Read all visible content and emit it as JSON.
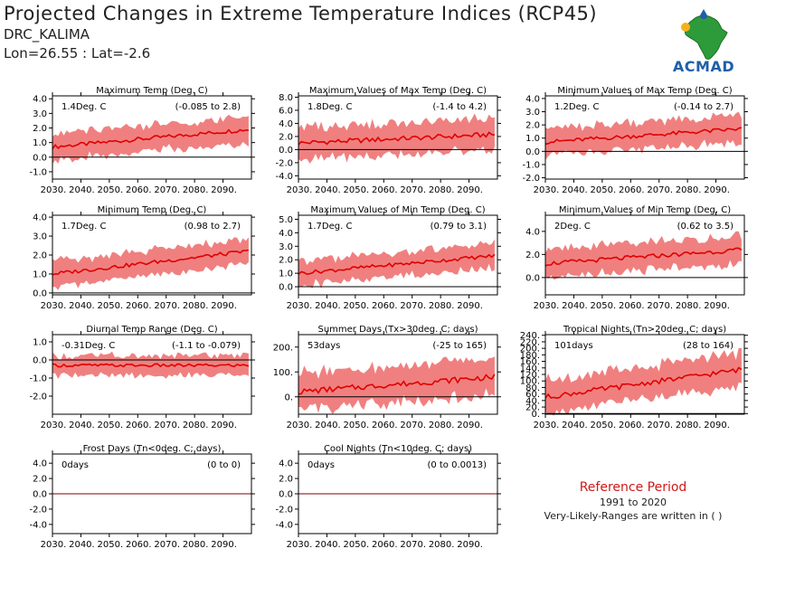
{
  "header": {
    "title": "Projected Changes in Extreme Temperature Indices (RCP45)",
    "location": "DRC_KALIMA",
    "coords": "Lon=26.55 : Lat=-2.6"
  },
  "logo": {
    "text": "ACMAD"
  },
  "reference": {
    "title": "Reference Period",
    "years": "1991 to 2020",
    "note": "Very-Likely-Ranges are written in ( )"
  },
  "colors": {
    "band": "#f08080",
    "line": "#e00000",
    "zero": "#000000"
  },
  "chart_data": [
    {
      "type": "area",
      "title": "Maximum Temp (Deg. C)",
      "value": "1.4Deg. C",
      "range": "(-0.085 to 2.8)",
      "x_ticks": [
        "2030.",
        "2040.",
        "2050.",
        "2060.",
        "2070.",
        "2080.",
        "2090."
      ],
      "x_range": [
        2030,
        2100
      ],
      "y_ticks": [
        "-1.0",
        "0.0",
        "1.0",
        "2.0",
        "3.0",
        "4.0"
      ],
      "ylim": [
        -1.5,
        4.2
      ],
      "mean_start": 0.7,
      "mean_end": 1.9,
      "band_low": -0.7,
      "band_high": 1.6
    },
    {
      "type": "area",
      "title": "Maximum Values of Max Temp (Deg. C)",
      "value": "1.8Deg. C",
      "range": "(-1.4 to 4.2)",
      "x_ticks": [
        "2030.",
        "2040.",
        "2050.",
        "2060.",
        "2070.",
        "2080.",
        "2090."
      ],
      "x_range": [
        2030,
        2100
      ],
      "y_ticks": [
        "-4.0",
        "-2.0",
        "0.0",
        "2.0",
        "4.0",
        "6.0",
        "8.0"
      ],
      "ylim": [
        -4.5,
        8.2
      ],
      "mean_start": 1.0,
      "mean_end": 2.3,
      "band_low": -3.0,
      "band_high": 3.2
    },
    {
      "type": "area",
      "title": "Minimum Values of Max Temp (Deg. C)",
      "value": "1.2Deg. C",
      "range": "(-0.14 to 2.7)",
      "x_ticks": [
        "2030.",
        "2040.",
        "2050.",
        "2060.",
        "2070.",
        "2080.",
        "2090."
      ],
      "x_range": [
        2030,
        2100
      ],
      "y_ticks": [
        "-2.0",
        "-1.0",
        "0.0",
        "1.0",
        "2.0",
        "3.0",
        "4.0"
      ],
      "ylim": [
        -2.1,
        4.2
      ],
      "mean_start": 0.7,
      "mean_end": 1.7,
      "band_low": -1.0,
      "band_high": 1.6
    },
    {
      "type": "area",
      "title": "Minimum Temp (Deg. C)",
      "value": "1.7Deg. C",
      "range": "(0.98 to 2.7)",
      "x_ticks": [
        "2030.",
        "2040.",
        "2050.",
        "2060.",
        "2070.",
        "2080.",
        "2090."
      ],
      "x_range": [
        2030,
        2100
      ],
      "y_ticks": [
        "0.0",
        "1.0",
        "2.0",
        "3.0",
        "4.0"
      ],
      "ylim": [
        -0.1,
        4.1
      ],
      "mean_start": 1.0,
      "mean_end": 2.2,
      "band_low": -0.6,
      "band_high": 1.1
    },
    {
      "type": "area",
      "title": "Maximum Values of Min Temp (Deg. C)",
      "value": "1.7Deg. C",
      "range": "(0.79 to 3.1)",
      "x_ticks": [
        "2030.",
        "2040.",
        "2050.",
        "2060.",
        "2070.",
        "2080.",
        "2090."
      ],
      "x_range": [
        2030,
        2100
      ],
      "y_ticks": [
        "0.0",
        "1.0",
        "2.0",
        "3.0",
        "4.0",
        "5.0"
      ],
      "ylim": [
        -0.6,
        5.3
      ],
      "mean_start": 1.0,
      "mean_end": 2.3,
      "band_low": -0.8,
      "band_high": 1.5
    },
    {
      "type": "area",
      "title": "Minimum Values of Min Temp (Deg. C)",
      "value": "2Deg. C",
      "range": "(0.62 to 3.5)",
      "x_ticks": [
        "2030.",
        "2040.",
        "2050.",
        "2060.",
        "2070.",
        "2080.",
        "2090."
      ],
      "x_range": [
        2030,
        2100
      ],
      "y_ticks": [
        "0.0",
        "2.0",
        "4.0"
      ],
      "ylim": [
        -1.5,
        5.4
      ],
      "mean_start": 1.2,
      "mean_end": 2.4,
      "band_low": -1.3,
      "band_high": 1.8
    },
    {
      "type": "area",
      "title": "Diurnal Temp Range (Deg. C)",
      "value": "-0.31Deg. C",
      "range": "(-1.1 to -0.079)",
      "x_ticks": [
        "2030.",
        "2040.",
        "2050.",
        "2060.",
        "2070.",
        "2080.",
        "2090."
      ],
      "x_range": [
        2030,
        2100
      ],
      "y_ticks": [
        "-2.0",
        "-1.0",
        "0.0",
        "1.0"
      ],
      "ylim": [
        -3.0,
        1.4
      ],
      "mean_start": -0.3,
      "mean_end": -0.3,
      "band_low": -0.9,
      "band_high": 0.5
    },
    {
      "type": "area",
      "title": "Summer Days (Tx>30deg. C; days)",
      "value": "53days",
      "range": "(-25 to 165)",
      "x_ticks": [
        "2030.",
        "2040.",
        "2050.",
        "2060.",
        "2070.",
        "2080.",
        "2090."
      ],
      "x_range": [
        2030,
        2100
      ],
      "y_ticks": [
        "0.",
        "100.",
        "200."
      ],
      "ylim": [
        -70,
        250
      ],
      "mean_start": 20,
      "mean_end": 80,
      "band_low": -50,
      "band_high": 140
    },
    {
      "type": "area",
      "title": "Tropical Nights (Tn>20deg. C; days)",
      "value": "101days",
      "range": "(28 to 164)",
      "x_ticks": [
        "2030.",
        "2040.",
        "2050.",
        "2060.",
        "2070.",
        "2080.",
        "2090."
      ],
      "x_range": [
        2030,
        2100
      ],
      "y_ticks": [
        "0.",
        "20.",
        "40.",
        "60.",
        "80.",
        "100.",
        "120.",
        "140.",
        "160.",
        "180.",
        "200.",
        "220.",
        "240."
      ],
      "ylim": [
        -2,
        242
      ],
      "mean_start": 50,
      "mean_end": 135,
      "band_low": -40,
      "band_high": 90
    },
    {
      "type": "area",
      "title": "Frost Days (Tn<0deg. C; days)",
      "value": "0days",
      "range": "(0 to 0)",
      "x_ticks": [
        "2030.",
        "2040.",
        "2050.",
        "2060.",
        "2070.",
        "2080.",
        "2090."
      ],
      "x_range": [
        2030,
        2100
      ],
      "y_ticks": [
        "-4.0",
        "-2.0",
        "0.0",
        "2.0",
        "4.0"
      ],
      "ylim": [
        -5.2,
        5.2
      ],
      "mean_start": 0,
      "mean_end": 0,
      "band_low": 0,
      "band_high": 0
    },
    {
      "type": "area",
      "title": "Cool Nights (Tn<10deg. C; days)",
      "value": "0days",
      "range": "(0 to 0.0013)",
      "x_ticks": [
        "2030.",
        "2040.",
        "2050.",
        "2060.",
        "2070.",
        "2080.",
        "2090."
      ],
      "x_range": [
        2030,
        2100
      ],
      "y_ticks": [
        "-4.0",
        "-2.0",
        "0.0",
        "2.0",
        "4.0"
      ],
      "ylim": [
        -5.2,
        5.2
      ],
      "mean_start": 0,
      "mean_end": 0,
      "band_low": 0,
      "band_high": 0
    }
  ]
}
